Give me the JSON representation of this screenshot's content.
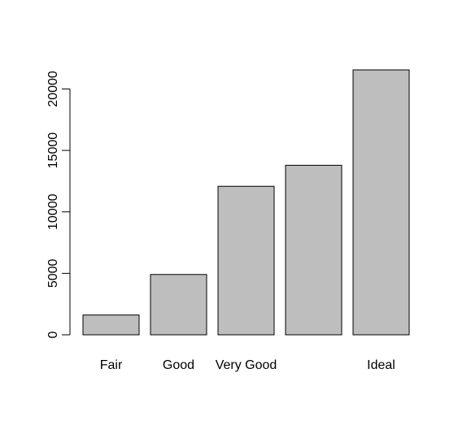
{
  "chart_data": {
    "type": "bar",
    "title": "",
    "xlabel": "",
    "ylabel": "",
    "categories": [
      "Fair",
      "Good",
      "Very Good",
      "",
      "Ideal"
    ],
    "values": [
      1610,
      4906,
      12082,
      13791,
      21551
    ],
    "ylim": [
      0,
      22000
    ],
    "yticks": [
      0,
      5000,
      10000,
      15000,
      20000
    ],
    "grid": false,
    "bar_color": "#bebebe",
    "bar_outline": "#000000"
  }
}
